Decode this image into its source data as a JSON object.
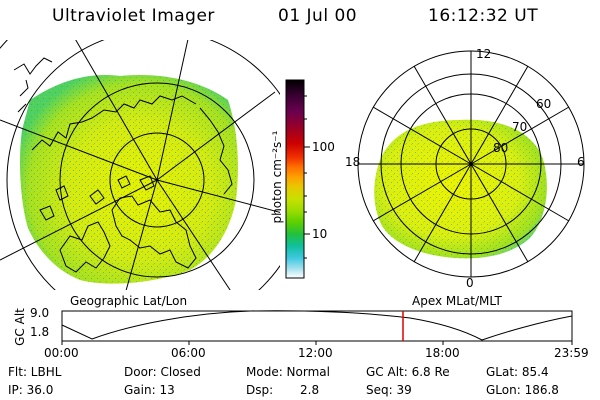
{
  "header": {
    "instrument": "Ultraviolet Imager",
    "date": "01 Jul 00",
    "time": "16:12:32 UT"
  },
  "geo_panel": {
    "label": "Geographic Lat/Lon"
  },
  "apex_panel": {
    "label": "Apex MLat/MLT",
    "mlt_labels": [
      "12",
      "18",
      "6",
      "0"
    ],
    "lat_labels": [
      "60",
      "70",
      "80"
    ]
  },
  "colorbar": {
    "unit": "photon cm⁻²s⁻¹",
    "ticks": [
      "100",
      "10"
    ],
    "colors": [
      "#000000",
      "#3a0033",
      "#6b004f",
      "#9a0028",
      "#cc0000",
      "#f03000",
      "#ff7000",
      "#ffa000",
      "#e8c800",
      "#c8e000",
      "#9cdc00",
      "#5ccf00",
      "#22c040",
      "#10c0a0",
      "#40c8e0",
      "#a0e0ee",
      "#ffffff"
    ]
  },
  "altitude_strip": {
    "ylabel": "GC Alt",
    "ticks": [
      "9.0",
      "1.8"
    ],
    "xticks": [
      "00:00",
      "06:00",
      "12:00",
      "18:00",
      "23:59"
    ]
  },
  "info": {
    "flt": "Flt: LBHL",
    "door": "Door: Closed",
    "mode": "Mode: Normal",
    "gcalt": "GC Alt: 6.8 Re",
    "glat": "GLat: 85.4",
    "ip": "IP: 36.0",
    "gain": "Gain: 13",
    "dsp_label": "Dsp:",
    "dsp_val": "2.8",
    "seq": "Seq: 39",
    "glon": "GLon: 186.8"
  }
}
